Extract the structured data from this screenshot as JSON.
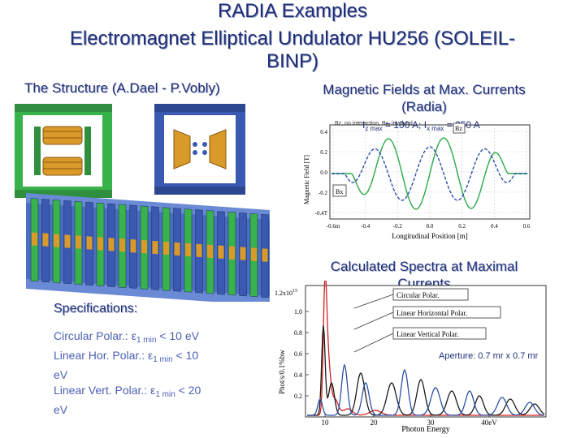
{
  "slide": {
    "title_line1": "RADIA Examples",
    "title_line2": "Electromagnet Elliptical Undulator HU256 (SOLEIL-",
    "title_line3": "BINP)",
    "structure_caption": "The Structure (A.Dael - P.Vobly)",
    "fields_caption_line1": "Magnetic Fields at Max. Currents",
    "fields_caption_line2": "(Radia)",
    "spectra_caption_line1": "Calculated Spectra at Maximal",
    "spectra_caption_line2": "Currents",
    "specifications": {
      "heading": "Specifications:",
      "line1_prefix": "Circular Polar.: ",
      "line1_eps": "ε",
      "line1_sub": "1 min",
      "line1_suffix": " < 10 eV",
      "line2_prefix": "Linear Hor. Polar.: ",
      "line2_eps": "ε",
      "line2_sub": "1 min",
      "line2_suffix": " < 10",
      "line3": "eV",
      "line4_prefix": "Linear Vert. Polar.: ",
      "line4_eps": "ε",
      "line4_sub": "1 min",
      "line4_suffix": " < 20",
      "line5": "eV"
    }
  },
  "field_plot": {
    "legend_overlay_a": "I",
    "legend_overlay_a_sub": "z max",
    "legend_overlay_mid": " = 100 A; I",
    "legend_overlay_b_sub": "x max",
    "legend_overlay_end": " = 250 A",
    "legend_small": "Bz, no interaction, Bx, involved",
    "bx_label": "Bx",
    "bz_label": "Bz",
    "ylabel": "Magnetic Field [T]",
    "xlabel": "Longitudinal Position [m]",
    "yticks": [
      "0.4",
      "0.2",
      "0.0",
      "-0.2",
      "-0.4T"
    ],
    "xticks": [
      "-0.6m",
      "-0.4",
      "-0.2",
      "0.0",
      "0.2",
      "0.4",
      "0.6"
    ],
    "colors": {
      "bz": "#2aa84a",
      "bx": "#2b4fa8"
    }
  },
  "spectra_plot": {
    "ytop_label": "1.2x10",
    "ytop_exp": "15",
    "yticks": [
      "1.0",
      "0.8",
      "0.6",
      "0.4",
      "0.2"
    ],
    "ylabel": "Phot/s/0.1%bw",
    "xticks": [
      "10",
      "20",
      "30",
      "40eV"
    ],
    "xlabel": "Photon Energy",
    "legend": {
      "circular": "Circular Polar.",
      "linear_h": "Linear Horizontal Polar.",
      "linear_v": "Linear Vertical Polar."
    },
    "aperture": "Aperture: 0.7 mr x 0.7 mr",
    "colors": {
      "circular": "#d42020",
      "linear_h": "#1a1a1a",
      "linear_v": "#2b4fa8"
    }
  },
  "structure_image": {
    "colors": {
      "green": "#38b24a",
      "blue": "#3a59b0",
      "orange": "#d99a2a"
    }
  }
}
